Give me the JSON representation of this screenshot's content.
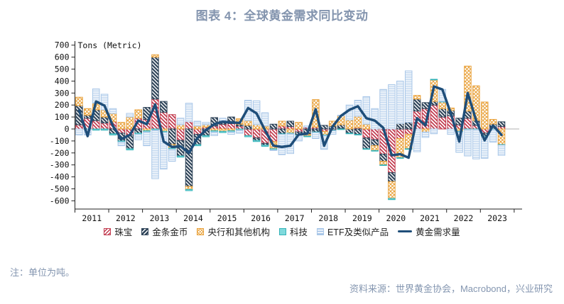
{
  "title": "图表 4：全球黄金需求同比变动",
  "note": "注：单位为吨。",
  "source": "资料来源：世界黄金协会，Macrobond，兴业研究",
  "chart_data": {
    "type": "bar",
    "subtype": "stacked-bar-with-line",
    "unit_label": "Tons (Metric)",
    "ylim": [
      -600,
      700
    ],
    "ytick_step": 100,
    "grid": "off",
    "legend_position": "bottom",
    "years": [
      2011,
      2012,
      2013,
      2014,
      2015,
      2016,
      2017,
      2018,
      2019,
      2020,
      2021,
      2022,
      2023
    ],
    "quarters_per_year": 4,
    "n_points": 51,
    "series": [
      {
        "key": "jewelry",
        "name": "珠宝",
        "color": "#C23B4F",
        "pattern": "diag-light",
        "values": [
          35,
          90,
          70,
          50,
          60,
          -35,
          -50,
          90,
          80,
          250,
          140,
          120,
          -95,
          60,
          -45,
          15,
          25,
          40,
          45,
          25,
          -55,
          -75,
          -120,
          -105,
          25,
          20,
          -25,
          15,
          15,
          -20,
          -10,
          5,
          0,
          10,
          -75,
          -90,
          -210,
          -365,
          -80,
          -45,
          150,
          170,
          200,
          100,
          110,
          35,
          90,
          30,
          -35,
          15,
          20
        ]
      },
      {
        "key": "barscoins",
        "name": "金条金币",
        "color": "#2F4459",
        "pattern": "diag-dark",
        "values": [
          160,
          25,
          90,
          50,
          -40,
          -65,
          -115,
          -35,
          100,
          350,
          90,
          -130,
          -130,
          -480,
          -85,
          -55,
          70,
          30,
          55,
          15,
          30,
          -20,
          -15,
          40,
          -40,
          45,
          -25,
          -45,
          -25,
          30,
          25,
          30,
          -35,
          -45,
          -90,
          -50,
          -60,
          -75,
          45,
          55,
          100,
          50,
          30,
          70,
          45,
          55,
          60,
          40,
          -25,
          25,
          40
        ]
      },
      {
        "key": "centralbanks",
        "name": "央行和其他机构",
        "color": "#E9A23B",
        "pattern": "crosshatch",
        "values": [
          70,
          55,
          55,
          60,
          70,
          55,
          100,
          70,
          -15,
          20,
          -20,
          -30,
          35,
          -25,
          25,
          20,
          -15,
          -20,
          -15,
          45,
          40,
          35,
          25,
          -60,
          40,
          -35,
          55,
          -15,
          230,
          -30,
          40,
          75,
          75,
          95,
          40,
          -40,
          -30,
          -140,
          -160,
          -120,
          30,
          -25,
          180,
          55,
          20,
          -20,
          375,
          290,
          225,
          40,
          -130
        ]
      },
      {
        "key": "tech",
        "name": "科技",
        "color": "#35B3B8",
        "pattern": "solid",
        "values": [
          0,
          -5,
          -10,
          -10,
          -10,
          -10,
          -10,
          -10,
          -10,
          -10,
          -10,
          -10,
          -10,
          -10,
          -10,
          -10,
          -10,
          -10,
          -10,
          -10,
          -10,
          -10,
          -10,
          -10,
          -5,
          -5,
          -5,
          -5,
          -5,
          -5,
          -5,
          -5,
          -5,
          -5,
          -5,
          -5,
          -5,
          -10,
          -5,
          -5,
          0,
          0,
          5,
          5,
          0,
          -5,
          -5,
          -5,
          -5,
          -5,
          -5
        ]
      },
      {
        "key": "etf",
        "name": "ETF及类似产品",
        "color": "#A9C7E8",
        "pattern": "hstripe",
        "values": [
          -50,
          -45,
          120,
          130,
          40,
          -30,
          30,
          -45,
          -115,
          -405,
          -305,
          -100,
          55,
          155,
          40,
          20,
          -30,
          20,
          -20,
          -25,
          170,
          200,
          110,
          -5,
          -170,
          -165,
          -45,
          10,
          -50,
          -115,
          -30,
          5,
          125,
          135,
          230,
          170,
          330,
          370,
          355,
          430,
          -190,
          -45,
          -40,
          100,
          -45,
          -170,
          -220,
          -245,
          -180,
          -105,
          -85
        ]
      }
    ],
    "line": {
      "key": "demand",
      "name": "黄金需求量",
      "color": "#1F4E79",
      "width": 3.5,
      "values": [
        155,
        -60,
        230,
        195,
        25,
        -85,
        -50,
        70,
        40,
        205,
        -105,
        -150,
        -145,
        -200,
        -75,
        -10,
        40,
        60,
        55,
        50,
        175,
        130,
        -10,
        -140,
        -150,
        -140,
        -45,
        -40,
        165,
        -140,
        20,
        110,
        160,
        190,
        90,
        70,
        10,
        -220,
        -210,
        -240,
        90,
        30,
        355,
        330,
        130,
        -105,
        300,
        70,
        -95,
        30,
        -50
      ]
    }
  }
}
